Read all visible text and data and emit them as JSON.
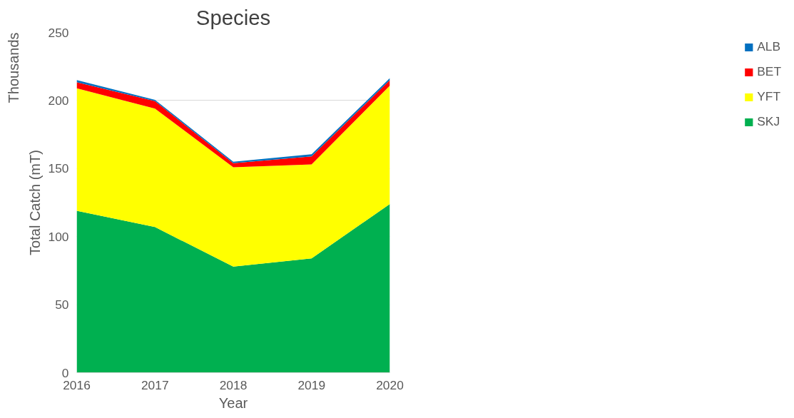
{
  "chart_data": {
    "type": "area",
    "stacked": true,
    "title": "Species",
    "xlabel": "Year",
    "ylabel": "Total Catch (mT)",
    "annotations": [
      "Thousands"
    ],
    "x": [
      2016,
      2017,
      2018,
      2019,
      2020
    ],
    "xlim": [
      2016,
      2020
    ],
    "xticks": [
      2016,
      2017,
      2018,
      2019,
      2020
    ],
    "ylim": [
      0,
      250
    ],
    "yticks": [
      0,
      50,
      100,
      150,
      200,
      250
    ],
    "grid": "y",
    "legend": "right",
    "series": [
      {
        "name": "SKJ",
        "color": "#00b050",
        "values": [
          119,
          107,
          78,
          84,
          124
        ]
      },
      {
        "name": "YFT",
        "color": "#ffff00",
        "values": [
          90,
          87,
          73,
          69,
          87
        ]
      },
      {
        "name": "BET",
        "color": "#ff0000",
        "values": [
          4.5,
          5.5,
          3,
          6,
          4
        ]
      },
      {
        "name": "ALB",
        "color": "#0070c0",
        "values": [
          1.5,
          1,
          1,
          1.5,
          1.5
        ]
      }
    ]
  }
}
